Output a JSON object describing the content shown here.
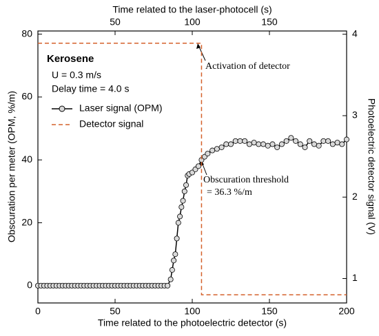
{
  "chart_data": {
    "type": "line",
    "xlabel": "Time related to the photoelectric detector (s)",
    "x2label": "Time related to the laser-photocell (s)",
    "ylabel": "Obscuration per meter (OPM, %/m)",
    "y2label": "Photoelectric detector signal (V)",
    "xlim": [
      0,
      200
    ],
    "xticks": [
      0,
      50,
      100,
      150,
      200
    ],
    "x2lim": [
      0,
      200
    ],
    "x2ticks": [
      50,
      100,
      150
    ],
    "ylim": [
      -5.5,
      81
    ],
    "yticks": [
      0,
      20,
      40,
      60,
      80
    ],
    "y2lim": [
      0.7,
      4.04
    ],
    "y2ticks": [
      1,
      2,
      3,
      4
    ],
    "annotations": [
      "Kerosene",
      "U = 0.3 m/s",
      "Delay time  = 4.0 s",
      "Activation of detector",
      "Obscuration threshold",
      "= 36.3 %/m"
    ],
    "series": [
      {
        "name": "Laser signal (OPM)",
        "color": "#000000",
        "marker_color": "#d9d9d9",
        "x": [
          0,
          2,
          4,
          6,
          8,
          10,
          12,
          14,
          16,
          18,
          20,
          22,
          24,
          26,
          28,
          30,
          32,
          34,
          36,
          38,
          40,
          42,
          44,
          46,
          48,
          50,
          52,
          54,
          56,
          58,
          60,
          62,
          64,
          66,
          68,
          70,
          72,
          74,
          76,
          78,
          80,
          82,
          84,
          86,
          87,
          88,
          89,
          90,
          91,
          92,
          93,
          94,
          95,
          96,
          97,
          98,
          100,
          102,
          104,
          106,
          108,
          110,
          113,
          116,
          119,
          122,
          125,
          128,
          131,
          134,
          137,
          140,
          143,
          146,
          149,
          152,
          155,
          158,
          161,
          164,
          167,
          170,
          173,
          176,
          179,
          182,
          185,
          188,
          191,
          194,
          197,
          200
        ],
        "values": [
          0,
          0,
          0,
          0,
          0,
          0,
          0,
          0,
          0,
          0,
          0,
          0,
          0,
          0,
          0,
          0,
          0,
          0,
          0,
          0,
          0,
          0,
          0,
          0,
          0,
          0,
          0,
          0,
          0,
          0,
          0,
          0,
          0,
          0,
          0,
          0,
          0,
          0,
          0,
          0,
          0,
          0,
          0,
          2,
          5,
          8,
          10,
          15,
          20,
          22,
          25,
          27,
          30,
          32,
          35,
          35.5,
          36,
          37,
          38,
          40,
          41,
          42,
          43,
          43.5,
          44,
          45,
          45,
          46,
          46,
          46,
          45,
          45.5,
          45,
          45,
          44.5,
          45,
          44,
          45,
          46,
          47,
          46,
          45,
          44,
          46,
          45,
          44.5,
          46,
          46,
          45,
          45.5,
          45,
          46.5
        ]
      },
      {
        "name": "Detector signal",
        "color": "#d4602a",
        "axis": "y2",
        "dashed": true,
        "x": [
          0,
          106,
          106,
          200
        ],
        "values": [
          3.89,
          3.89,
          0.8,
          0.8
        ]
      }
    ]
  }
}
